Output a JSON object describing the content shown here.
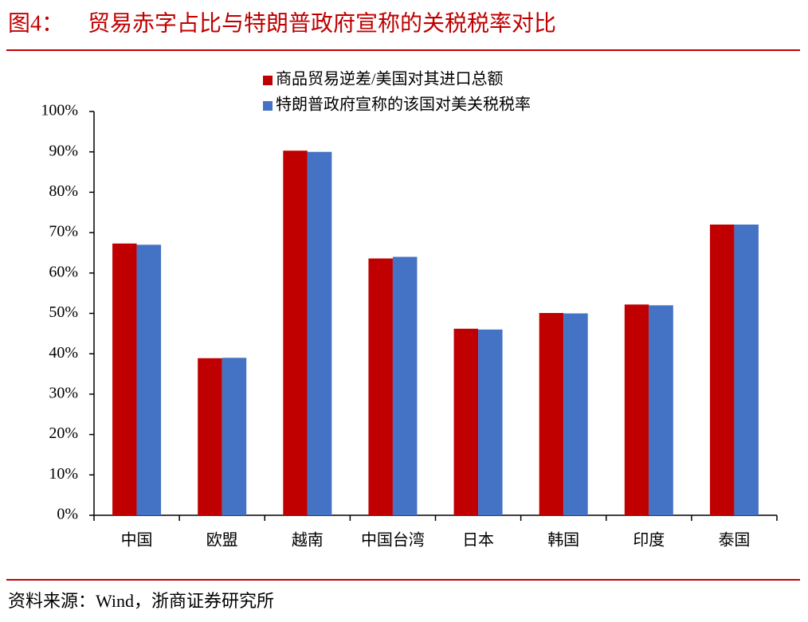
{
  "chart_data": {
    "type": "bar",
    "figure_label": "图4：",
    "title": "贸易赤字占比与特朗普政府宣称的关税税率对比",
    "source": "资料来源：Wind，浙商证券研究所",
    "categories": [
      "中国",
      "欧盟",
      "越南",
      "中国台湾",
      "日本",
      "韩国",
      "印度",
      "泰国"
    ],
    "series": [
      {
        "name": "商品贸易逆差/美国对其进口总额",
        "color": "#c00000",
        "values": [
          67.3,
          38.9,
          90.3,
          63.6,
          46.2,
          50.1,
          52.2,
          72
        ]
      },
      {
        "name": "特朗普政府宣称的该国对美关税税率",
        "color": "#4472c4",
        "values": [
          67,
          39,
          90,
          64,
          46,
          50,
          52,
          72
        ]
      }
    ],
    "ylim": [
      0,
      100
    ],
    "yticks": [
      {
        "value": 0,
        "label": "0%"
      },
      {
        "value": 10,
        "label": "10%"
      },
      {
        "value": 20,
        "label": "20%"
      },
      {
        "value": 30,
        "label": "30%"
      },
      {
        "value": 40,
        "label": "40%"
      },
      {
        "value": 50,
        "label": "50%"
      },
      {
        "value": 60,
        "label": "60%"
      },
      {
        "value": 70,
        "label": "70%"
      },
      {
        "value": 80,
        "label": "80%"
      },
      {
        "value": 90,
        "label": "90%"
      },
      {
        "value": 100,
        "label": "100%"
      }
    ],
    "grid": false
  }
}
